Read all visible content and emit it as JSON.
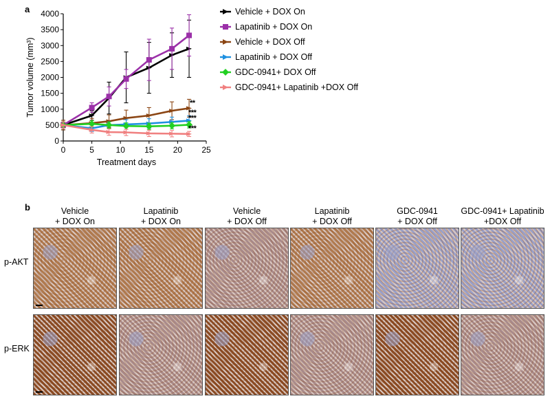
{
  "panel_a_label": "a",
  "panel_b_label": "b",
  "chart_data": {
    "type": "line",
    "xlabel": "Treatment days",
    "ylabel": "Tumor volume (mm³)",
    "xlim": [
      0,
      25
    ],
    "ylim": [
      0,
      4000
    ],
    "xticks": [
      "0",
      "5",
      "10",
      "15",
      "20",
      "25"
    ],
    "yticks": [
      "0",
      "500",
      "1000",
      "1500",
      "2000",
      "2500",
      "3000",
      "3500",
      "4000"
    ],
    "grid": false,
    "legend_position": "right",
    "series": [
      {
        "name": "Vehicle + DOX On",
        "color": "#000000",
        "marker": "arrow",
        "x": [
          0,
          5,
          8,
          11,
          15,
          19,
          22
        ],
        "y": [
          500,
          800,
          1350,
          2000,
          2300,
          2700,
          2900
        ],
        "err": [
          150,
          150,
          500,
          800,
          800,
          700,
          900
        ]
      },
      {
        "name": "Lapatinib + DOX On",
        "color": "#9b30a8",
        "marker": "square",
        "x": [
          0,
          5,
          8,
          11,
          15,
          19,
          22
        ],
        "y": [
          500,
          1050,
          1400,
          1950,
          2550,
          2900,
          3320
        ],
        "err": [
          100,
          150,
          300,
          300,
          650,
          650,
          650
        ]
      },
      {
        "name": "Vehicle + DOX Off",
        "color": "#8b4513",
        "marker": "arrow",
        "x": [
          0,
          5,
          8,
          11,
          15,
          19,
          22
        ],
        "y": [
          500,
          560,
          620,
          720,
          800,
          950,
          1030
        ],
        "err": [
          150,
          150,
          200,
          250,
          250,
          280,
          280
        ]
      },
      {
        "name": "Lapatinib + DOX Off",
        "color": "#1e90e0",
        "marker": "arrow",
        "x": [
          0,
          5,
          8,
          11,
          15,
          19,
          22
        ],
        "y": [
          500,
          400,
          500,
          520,
          550,
          600,
          640
        ],
        "err": [
          100,
          100,
          100,
          150,
          150,
          150,
          150
        ]
      },
      {
        "name": "GDC-0941+ DOX Off",
        "color": "#22d022",
        "marker": "diamond",
        "x": [
          0,
          5,
          8,
          11,
          15,
          19,
          22
        ],
        "y": [
          500,
          540,
          500,
          470,
          460,
          480,
          510
        ],
        "err": [
          100,
          100,
          100,
          100,
          100,
          100,
          100
        ]
      },
      {
        "name": "GDC-0941+ Lapatinib +DOX Off",
        "color": "#f08080",
        "marker": "arrow",
        "x": [
          0,
          5,
          8,
          11,
          15,
          19,
          22
        ],
        "y": [
          500,
          350,
          280,
          270,
          240,
          230,
          220
        ],
        "err": [
          100,
          100,
          100,
          100,
          100,
          100,
          80
        ]
      }
    ],
    "annotations": [
      "**",
      "***",
      "***",
      "***"
    ]
  },
  "panel_b": {
    "columns": [
      "Vehicle\n+ DOX On",
      "Lapatinib\n+ DOX On",
      "Vehicle\n+ DOX Off",
      "Lapatinib\n+ DOX Off",
      "GDC-0941\n+ DOX Off",
      "GDC-0941+ Lapatinib\n+DOX Off"
    ],
    "rows": [
      "p-AKT",
      "p-ERK"
    ],
    "stain_colors": {
      "brown_strong": "#8a4a22",
      "brown_medium": "#b07a4e",
      "mixed": "#a98a8a",
      "blue": "#9aa0c8"
    },
    "tile_tones": [
      [
        "brown_medium",
        "brown_medium",
        "mixed",
        "brown_medium",
        "blue",
        "blue"
      ],
      [
        "brown_strong",
        "mixed",
        "brown_strong",
        "mixed",
        "brown_strong",
        "mixed"
      ]
    ]
  }
}
